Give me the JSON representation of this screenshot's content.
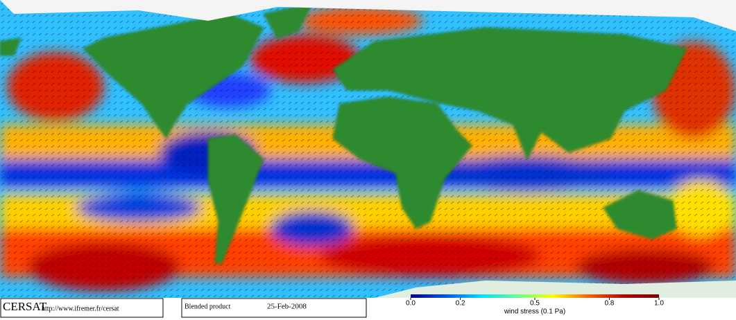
{
  "header": {
    "logo": "CERSAT",
    "url": "http://www.ifremer.fr/cersat",
    "product": "Blended product",
    "date": "25-Feb-2008"
  },
  "colorbar": {
    "label": "wind stress (0.1 Pa)",
    "lim": [
      0,
      1
    ],
    "ticks": [
      {
        "value": 0,
        "label": "0.0"
      },
      0.2,
      0.5,
      0.8,
      {
        "value": 1,
        "label": "1.0"
      }
    ],
    "colors": [
      "#00008f",
      "#0050ff",
      "#00dfff",
      "#60ff90",
      "#ffff00",
      "#ff6000",
      "#c00000",
      "#800000"
    ]
  }
}
